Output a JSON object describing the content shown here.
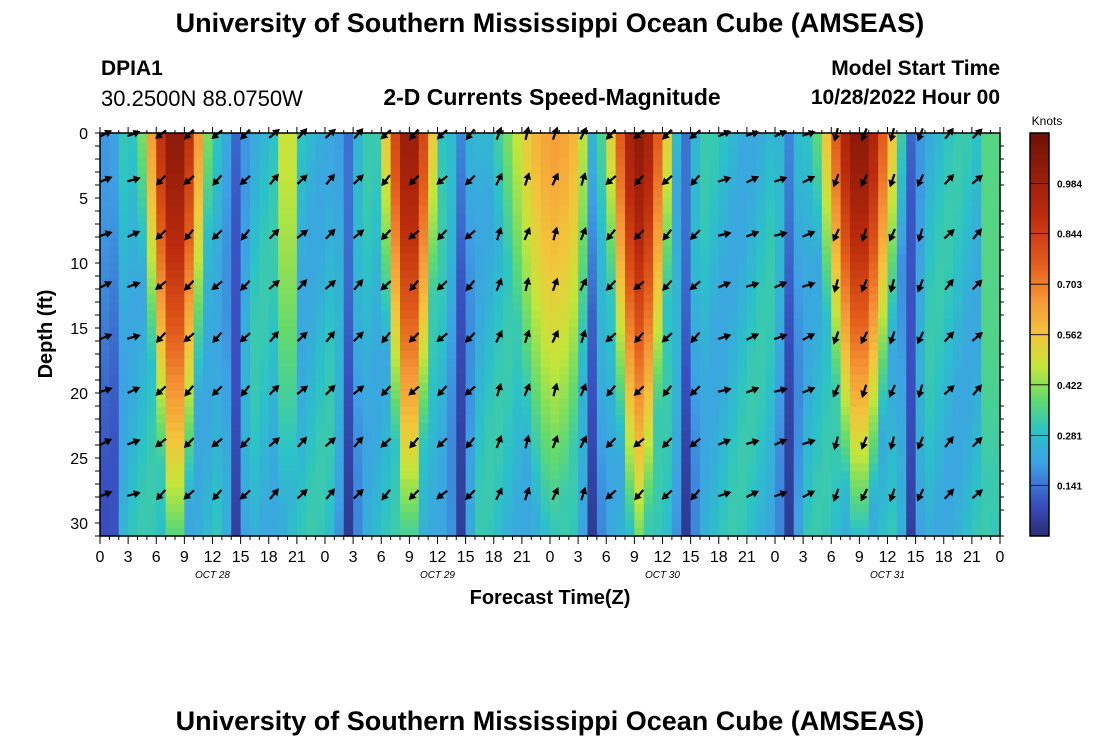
{
  "header": {
    "title": "University of Southern Mississippi Ocean Cube (AMSEAS)",
    "station_id": "DPIA1",
    "coordinates": "30.2500N  88.0750W",
    "plot_title": "2-D Currents Speed-Magnitude",
    "model_start_label": "Model Start Time",
    "model_start_value": "10/28/2022 Hour 00"
  },
  "footer": {
    "title": "University of Southern Mississippi Ocean Cube (AMSEAS)"
  },
  "chart_data": {
    "type": "heatmap",
    "title": "2-D Currents Speed-Magnitude",
    "xlabel": "Forecast Time(Z)",
    "ylabel": "Depth (ft)",
    "x_range_hours": [
      0,
      96
    ],
    "x_tick_labels": [
      "0",
      "3",
      "6",
      "9",
      "12",
      "15",
      "18",
      "21",
      "0",
      "3",
      "6",
      "9",
      "12",
      "15",
      "18",
      "21",
      "0",
      "3",
      "6",
      "9",
      "12",
      "15",
      "18",
      "21",
      "0",
      "3",
      "6",
      "9",
      "12",
      "15",
      "18",
      "21",
      "0"
    ],
    "day_labels": [
      {
        "label": "OCT 28",
        "hour": 12
      },
      {
        "label": "OCT 29",
        "hour": 36
      },
      {
        "label": "OCT 30",
        "hour": 60
      },
      {
        "label": "OCT 31",
        "hour": 84
      }
    ],
    "y_range_ft": [
      0,
      31
    ],
    "y_ticks": [
      0,
      5,
      10,
      15,
      20,
      25,
      30
    ],
    "colorbar": {
      "label": "Knots",
      "range": [
        0.0,
        1.125
      ],
      "tick_values": [
        0.141,
        0.281,
        0.422,
        0.562,
        0.703,
        0.844,
        0.984
      ],
      "tick_labels": [
        "0.141",
        "0.281",
        "0.422",
        "0.562",
        "0.703",
        "0.844",
        "0.984"
      ]
    },
    "speed_features_hours_knots": [
      {
        "center": 8.0,
        "halfwidth": 3.4,
        "peak": 1.05,
        "floor": 0.4
      },
      {
        "center": 33.0,
        "halfwidth": 3.0,
        "peak": 1.02,
        "floor": 0.38
      },
      {
        "center": 48.5,
        "halfwidth": 7.0,
        "peak": 0.64,
        "floor": 0.3
      },
      {
        "center": 57.5,
        "halfwidth": 3.5,
        "peak": 1.03,
        "floor": 0.4
      },
      {
        "center": 81.0,
        "halfwidth": 4.2,
        "peak": 1.05,
        "floor": 0.3
      },
      {
        "center": 20.0,
        "halfwidth": 1.8,
        "peak": 0.52,
        "floor": 0.3
      },
      {
        "center": 95.0,
        "halfwidth": 1.5,
        "peak": 0.4,
        "floor": 0.45
      }
    ],
    "slack_minima_hours": [
      1,
      14.5,
      26.5,
      38.5,
      52.5,
      62.5,
      73.5,
      86.5
    ],
    "arrow_depths_ft": [
      0,
      3.6,
      7.8,
      11.7,
      15.7,
      19.8,
      23.8,
      27.8
    ],
    "arrow_hours": [
      0,
      3,
      6,
      9,
      12,
      15,
      18,
      21,
      24,
      27,
      30,
      33,
      36,
      39,
      42,
      45,
      48,
      51,
      54,
      57,
      60,
      63,
      66,
      69,
      72,
      75,
      78,
      81,
      84,
      87,
      90,
      93
    ],
    "arrow_directions_deg_from_north": [
      {
        "from_hour": 0,
        "to_hour": 4,
        "dir": 70
      },
      {
        "from_hour": 4,
        "to_hour": 16,
        "dir": 225
      },
      {
        "from_hour": 16,
        "to_hour": 28,
        "dir": 45
      },
      {
        "from_hour": 28,
        "to_hour": 40,
        "dir": 225
      },
      {
        "from_hour": 40,
        "to_hour": 53,
        "dir": 20
      },
      {
        "from_hour": 53,
        "to_hour": 64,
        "dir": 225
      },
      {
        "from_hour": 64,
        "to_hour": 76,
        "dir": 70
      },
      {
        "from_hour": 76,
        "to_hour": 88,
        "dir": 200
      },
      {
        "from_hour": 88,
        "to_hour": 97,
        "dir": 45
      }
    ]
  }
}
